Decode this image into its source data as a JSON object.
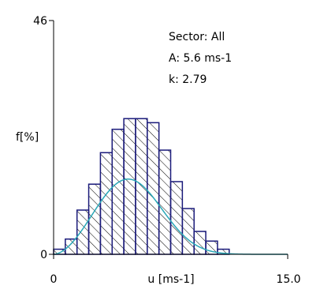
{
  "chart_data": {
    "type": "bar",
    "subtype": "histogram-with-weibull-fit",
    "title": "",
    "xlabel": "u [ms-1]",
    "ylabel": "f[%]",
    "xlim": [
      0,
      15
    ],
    "ylim": [
      0,
      46
    ],
    "x_tick_labels": [
      "0",
      "15.0"
    ],
    "y_tick_labels": [
      "0",
      "46"
    ],
    "bin_width": 0.75,
    "bins": [
      {
        "x0": 0.0,
        "value": 1.0
      },
      {
        "x0": 0.75,
        "value": 3.0
      },
      {
        "x0": 1.5,
        "value": 8.7
      },
      {
        "x0": 2.25,
        "value": 13.8
      },
      {
        "x0": 3.0,
        "value": 20.0
      },
      {
        "x0": 3.75,
        "value": 24.6
      },
      {
        "x0": 4.5,
        "value": 26.7
      },
      {
        "x0": 5.25,
        "value": 26.7
      },
      {
        "x0": 6.0,
        "value": 25.9
      },
      {
        "x0": 6.75,
        "value": 20.5
      },
      {
        "x0": 7.5,
        "value": 14.3
      },
      {
        "x0": 8.25,
        "value": 9.0
      },
      {
        "x0": 9.0,
        "value": 4.5
      },
      {
        "x0": 9.75,
        "value": 2.6
      },
      {
        "x0": 10.5,
        "value": 1.0
      }
    ],
    "fit": {
      "distribution": "weibull",
      "A": 5.6,
      "k": 2.79,
      "scale_percent": 75
    },
    "annotations": {
      "sector": "Sector: All",
      "A": "A: 5.6 ms-1",
      "k": "k: 2.79"
    },
    "colors": {
      "bar_edge": "#1a1a7a",
      "hatch": "#000000",
      "fit_curve": "#2aa8b8",
      "axis": "#000000"
    },
    "grid": false
  }
}
